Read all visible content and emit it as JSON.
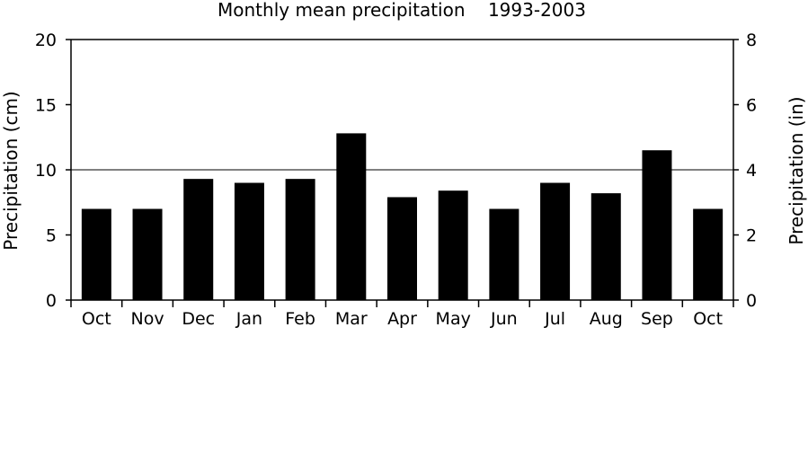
{
  "chart_data": {
    "type": "bar",
    "title": "Monthly mean precipitation    1993-2003",
    "ylabel": "Precipitation (cm)",
    "y2label": "Precipitation (in)",
    "ylim": [
      0,
      20
    ],
    "y2lim": [
      0,
      8
    ],
    "yticks": [
      "0",
      "5",
      "10",
      "15",
      "20"
    ],
    "y2ticks": [
      "0",
      "2",
      "4",
      "6",
      "8"
    ],
    "categories": [
      "Oct",
      "Nov",
      "Dec",
      "Jan",
      "Feb",
      "Mar",
      "Apr",
      "May",
      "Jun",
      "Jul",
      "Aug",
      "Sep",
      "Oct"
    ],
    "values": [
      7.0,
      7.0,
      9.3,
      9.0,
      9.3,
      12.8,
      7.9,
      8.4,
      7.0,
      9.0,
      8.2,
      11.5,
      7.0
    ],
    "reference_line": 10,
    "bar_color": "#000000",
    "legend": "none",
    "grid": false
  }
}
